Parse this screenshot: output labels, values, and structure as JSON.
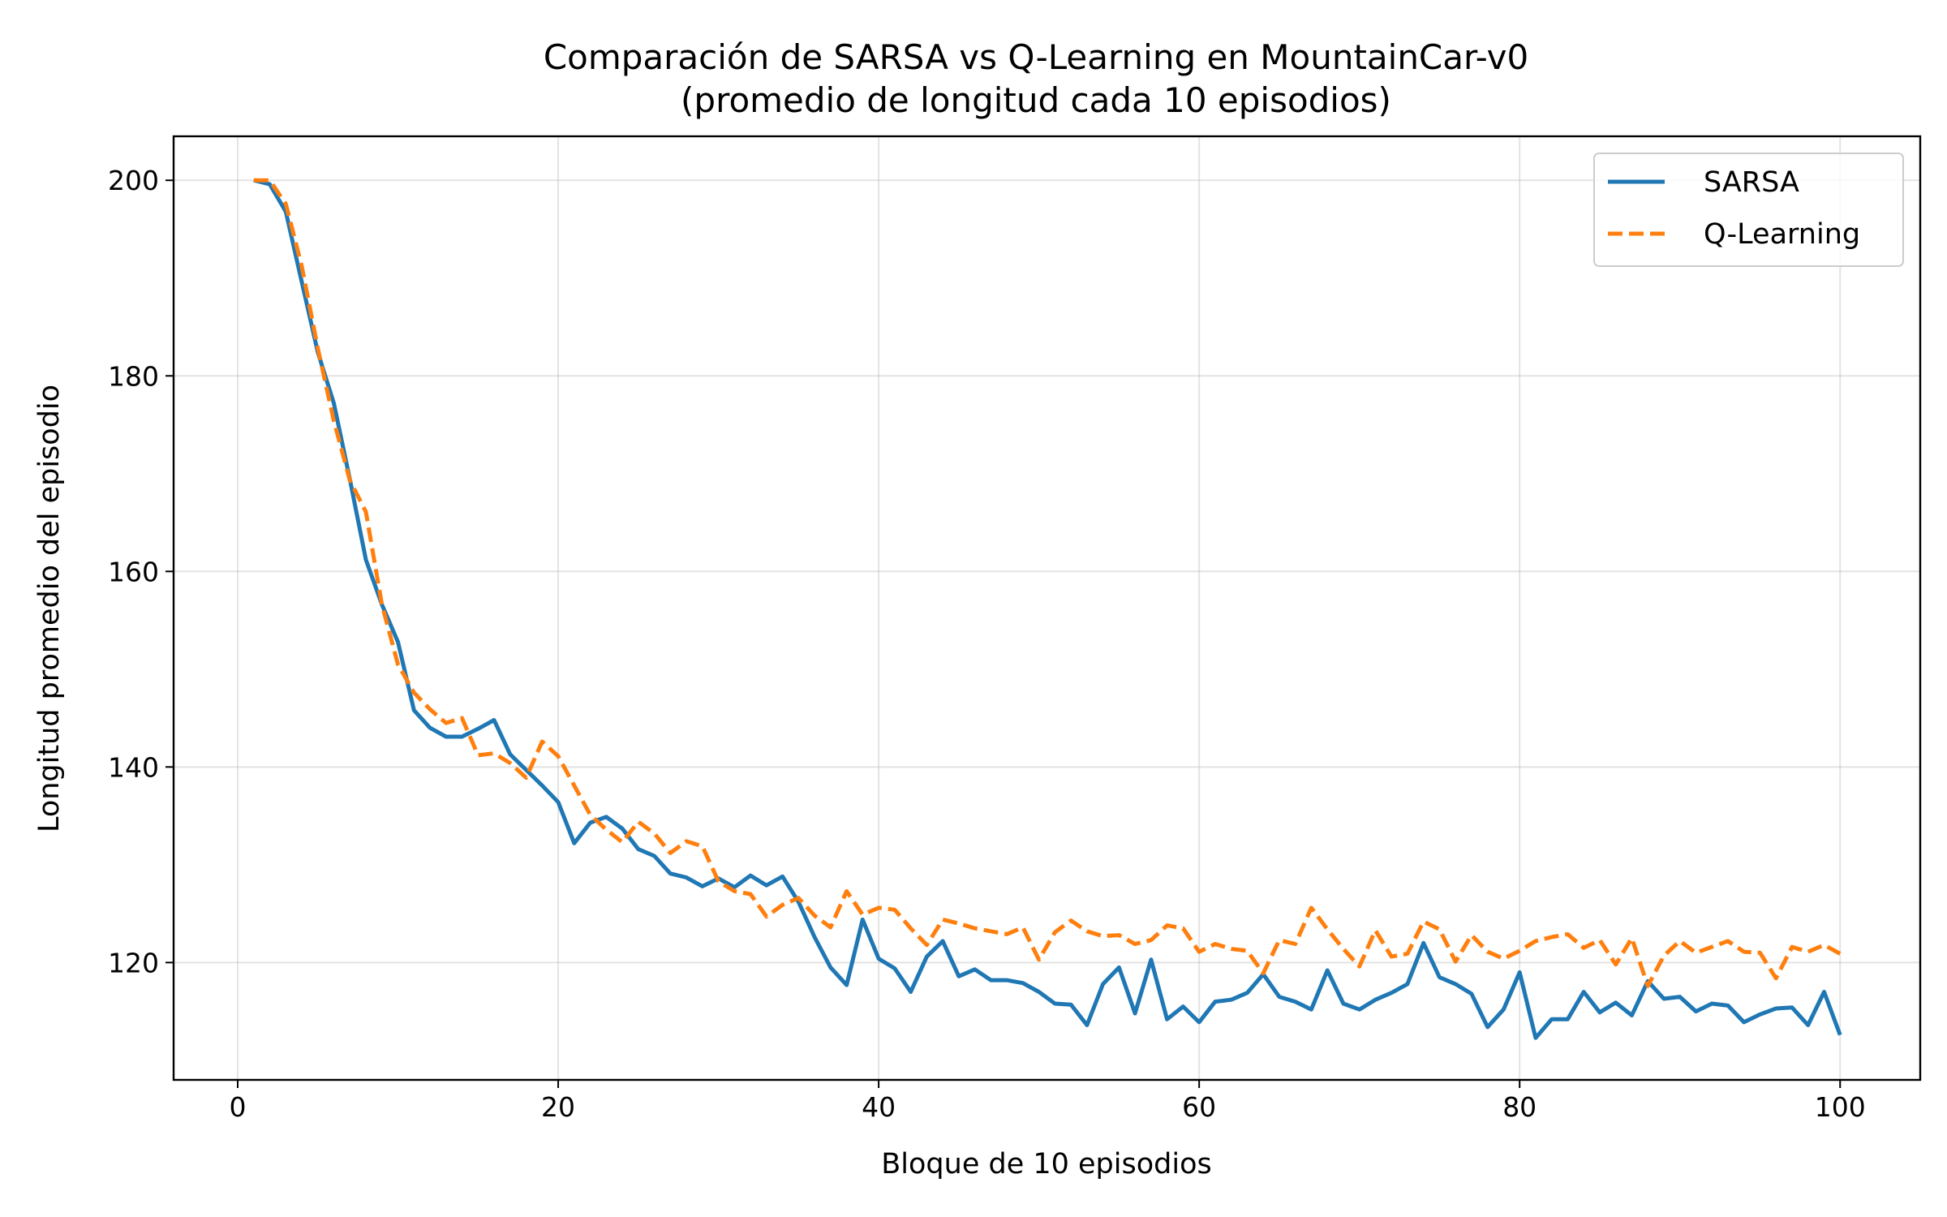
{
  "chart_data": {
    "type": "line",
    "title": "Comparación de SARSA vs Q-Learning en MountainCar-v0",
    "subtitle": "(promedio de longitud cada 10 episodios)",
    "xlabel": "Bloque de 10 episodios",
    "ylabel": "Longitud promedio del episodio",
    "xlim": [
      -4,
      105
    ],
    "ylim": [
      108,
      204.5
    ],
    "xticks": [
      0,
      20,
      40,
      60,
      80,
      100
    ],
    "xtick_labels": [
      "0",
      "20",
      "40",
      "60",
      "80",
      "100"
    ],
    "yticks": [
      120,
      140,
      160,
      180,
      200
    ],
    "ytick_labels": [
      "120",
      "140",
      "160",
      "180",
      "200"
    ],
    "grid": true,
    "legend_position": "top-right",
    "series": [
      {
        "name": "SARSA",
        "color": "#1f77b4",
        "style": "solid",
        "x": [
          1,
          2,
          3,
          4,
          5,
          6,
          7,
          8,
          9,
          10,
          11,
          12,
          13,
          14,
          15,
          16,
          17,
          18,
          19,
          20,
          21,
          22,
          23,
          24,
          25,
          26,
          27,
          28,
          29,
          30,
          31,
          32,
          33,
          34,
          35,
          36,
          37,
          38,
          39,
          40,
          41,
          42,
          43,
          44,
          45,
          46,
          47,
          48,
          49,
          50,
          51,
          52,
          53,
          54,
          55,
          56,
          57,
          58,
          59,
          60,
          61,
          62,
          63,
          64,
          65,
          66,
          67,
          68,
          69,
          70,
          71,
          72,
          73,
          74,
          75,
          76,
          77,
          78,
          79,
          80,
          81,
          82,
          83,
          84,
          85,
          86,
          87,
          88,
          89,
          90,
          91,
          92,
          93,
          94,
          95,
          96,
          97,
          98,
          99,
          100
        ],
        "values": [
          200,
          199.6,
          196.8,
          189.6,
          182.4,
          177.2,
          169.4,
          161.2,
          156.6,
          152.8,
          145.8,
          144,
          143.1,
          143.1,
          143.9,
          144.8,
          141.3,
          139.7,
          138.1,
          136.4,
          132.2,
          134.3,
          134.9,
          133.7,
          131.6,
          130.9,
          129.1,
          128.7,
          127.8,
          128.6,
          127.7,
          128.9,
          127.9,
          128.8,
          126.2,
          122.6,
          119.5,
          117.7,
          124.4,
          120.4,
          119.4,
          117,
          120.6,
          122.2,
          118.6,
          119.3,
          118.2,
          118.2,
          117.9,
          117,
          115.8,
          115.7,
          113.6,
          117.8,
          119.5,
          114.8,
          120.3,
          114.2,
          115.5,
          113.9,
          116,
          116.2,
          116.9,
          118.8,
          116.5,
          116,
          115.2,
          119.2,
          115.8,
          115.2,
          116.2,
          116.9,
          117.8,
          122,
          118.5,
          117.8,
          116.8,
          113.4,
          115.2,
          119,
          112.3,
          114.2,
          114.2,
          117,
          114.9,
          115.9,
          114.6,
          118.1,
          116.3,
          116.5,
          115,
          115.8,
          115.6,
          113.9,
          114.7,
          115.3,
          115.4,
          113.6,
          117,
          112.6
        ]
      },
      {
        "name": "Q-Learning",
        "color": "#ff7f0e",
        "style": "dashed",
        "x": [
          1,
          2,
          3,
          4,
          5,
          6,
          7,
          8,
          9,
          10,
          11,
          12,
          13,
          14,
          15,
          16,
          17,
          18,
          19,
          20,
          21,
          22,
          23,
          24,
          25,
          26,
          27,
          28,
          29,
          30,
          31,
          32,
          33,
          34,
          35,
          36,
          37,
          38,
          39,
          40,
          41,
          42,
          43,
          44,
          45,
          46,
          47,
          48,
          49,
          50,
          51,
          52,
          53,
          54,
          55,
          56,
          57,
          58,
          59,
          60,
          61,
          62,
          63,
          64,
          65,
          66,
          67,
          68,
          69,
          70,
          71,
          72,
          73,
          74,
          75,
          76,
          77,
          78,
          79,
          80,
          81,
          82,
          83,
          84,
          85,
          86,
          87,
          88,
          89,
          90,
          91,
          92,
          93,
          94,
          95,
          96,
          97,
          98,
          99,
          100
        ],
        "values": [
          200,
          200,
          197.6,
          191.2,
          182.8,
          175.4,
          169.3,
          166.1,
          156.6,
          150.5,
          147.6,
          145.9,
          144.5,
          145,
          141.2,
          141.4,
          140.4,
          138.9,
          142.6,
          141.1,
          138.1,
          135.1,
          133.6,
          132.3,
          134.4,
          133.2,
          131.2,
          132.4,
          131.9,
          128.3,
          127.3,
          127,
          124.7,
          125.9,
          126.6,
          124.8,
          123.6,
          127.3,
          124.9,
          125.6,
          125.4,
          123.5,
          121.8,
          124.4,
          124,
          123.5,
          123.2,
          122.9,
          123.6,
          120.3,
          123.1,
          124.3,
          123.2,
          122.7,
          122.8,
          121.9,
          122.3,
          123.8,
          123.5,
          121.1,
          121.9,
          121.4,
          121.2,
          118.9,
          122.3,
          121.9,
          125.6,
          123.4,
          121.4,
          119.6,
          123.3,
          120.6,
          120.9,
          124.2,
          123.4,
          120.1,
          122.8,
          121.1,
          120.4,
          121.2,
          122.2,
          122.6,
          122.9,
          121.5,
          122.3,
          119.8,
          122.5,
          117.6,
          120.7,
          122.2,
          121,
          121.6,
          122.2,
          121.1,
          121,
          118.4,
          121.6,
          121.1,
          121.8,
          120.9
        ]
      }
    ]
  }
}
